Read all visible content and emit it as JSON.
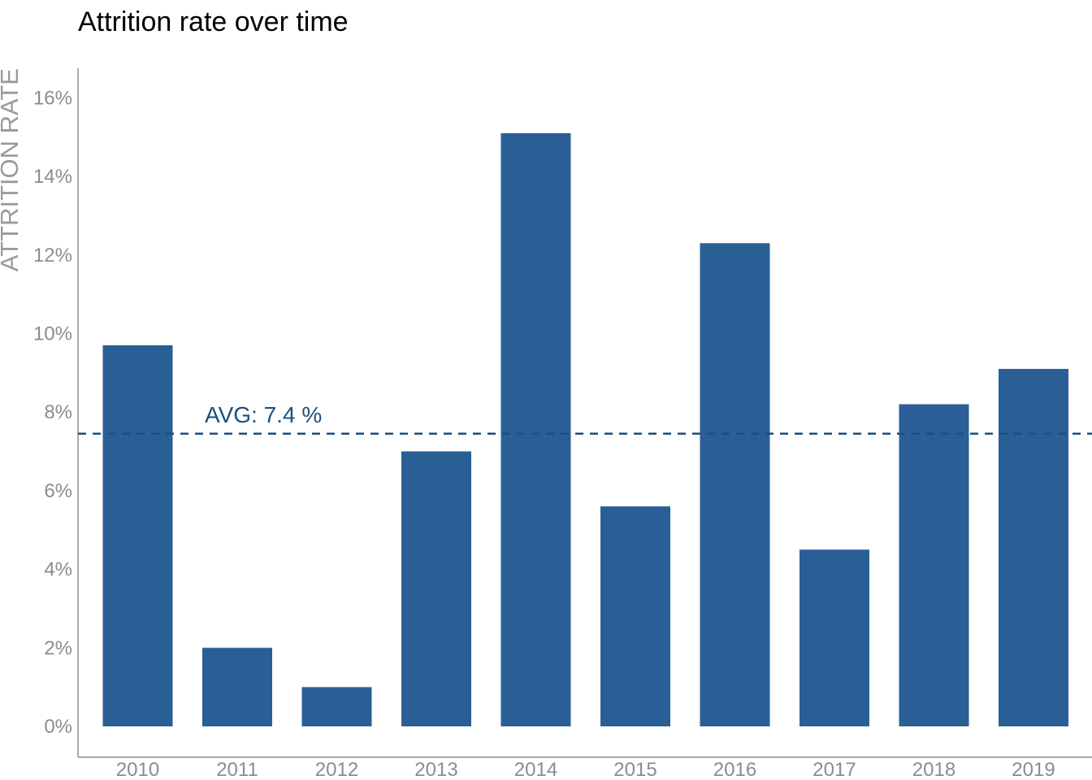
{
  "chart_data": {
    "type": "bar",
    "title": "Attrition rate over time",
    "xlabel": "",
    "ylabel": "ATTRITION RATE",
    "categories": [
      "2010",
      "2011",
      "2012",
      "2013",
      "2014",
      "2015",
      "2016",
      "2017",
      "2018",
      "2019"
    ],
    "values": [
      9.7,
      2.0,
      1.0,
      7.0,
      15.1,
      5.6,
      12.3,
      4.5,
      8.2,
      9.1
    ],
    "ylim": [
      0,
      16.8
    ],
    "yticks": [
      0,
      2,
      4,
      6,
      8,
      10,
      12,
      14,
      16
    ],
    "ytick_suffix": "%",
    "grid": false,
    "legend": "none",
    "bar_color": "#2a5f96",
    "reference_line": {
      "value": 7.45,
      "style": "dashed",
      "color": "#1a4f7e",
      "label": "AVG:  7.4 %"
    }
  }
}
